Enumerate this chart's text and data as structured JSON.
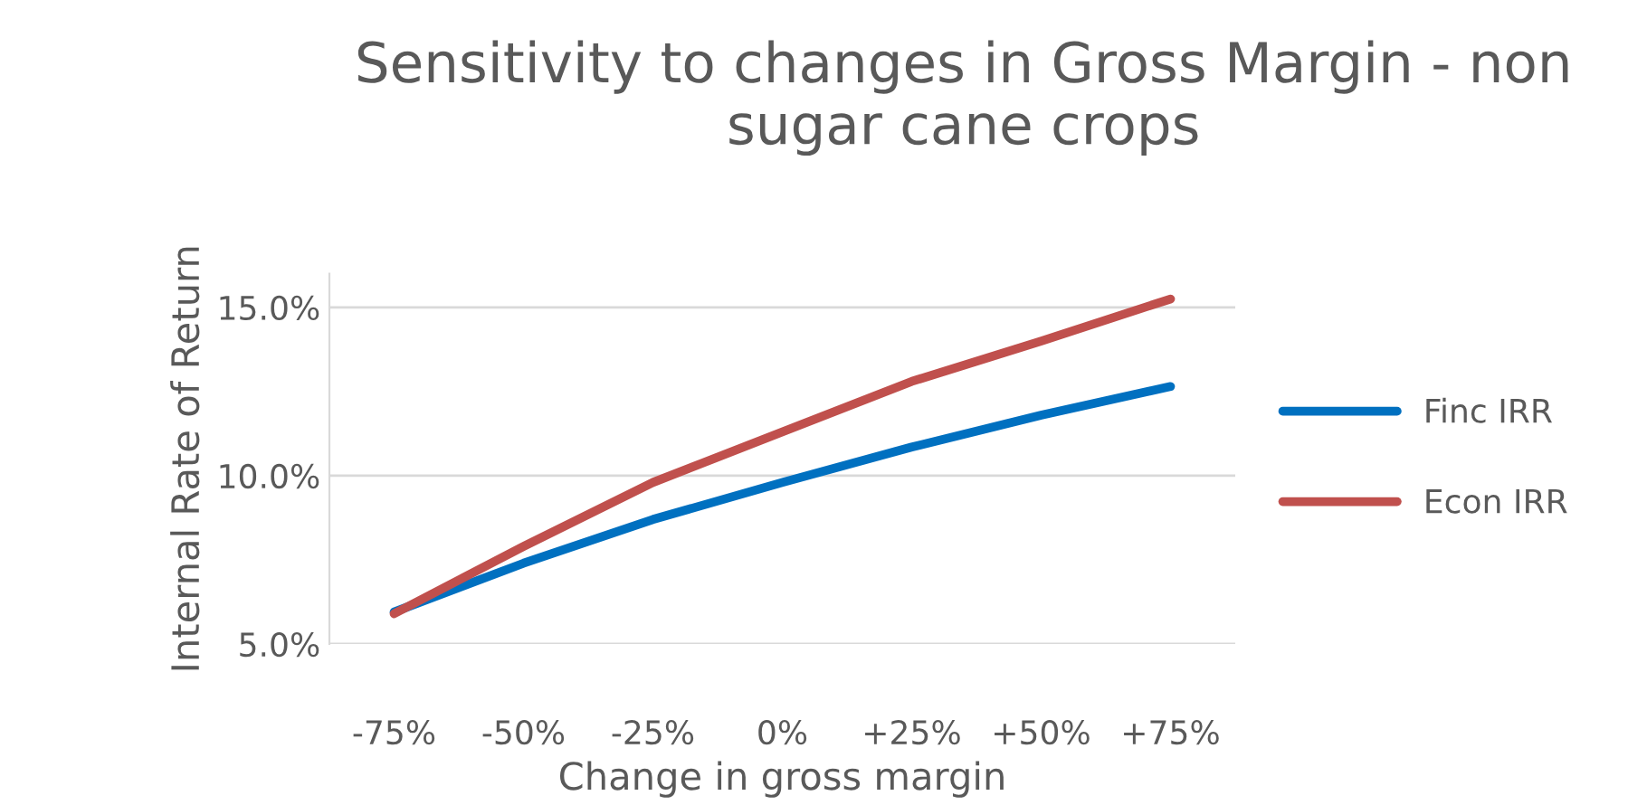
{
  "chart_data": {
    "type": "line",
    "title": "Sensitivity to changes in Gross Margin - non sugar cane crops",
    "xlabel": "Change in gross margin",
    "ylabel": "Internal Rate of Return",
    "categories": [
      "-75%",
      "-50%",
      "-25%",
      "0%",
      "+25%",
      "+50%",
      "+75%"
    ],
    "series": [
      {
        "name": "Finc IRR",
        "color": "#0070c0",
        "values": [
          5.95,
          7.4,
          8.7,
          9.8,
          10.85,
          11.8,
          12.65
        ]
      },
      {
        "name": "Econ IRR",
        "color": "#c0504d",
        "values": [
          5.9,
          7.9,
          9.8,
          11.3,
          12.8,
          14.0,
          15.25
        ]
      }
    ],
    "ylim": [
      5,
      16
    ],
    "yticks": [
      {
        "value": 5,
        "label": "5.0%"
      },
      {
        "value": 10,
        "label": "10.0%"
      },
      {
        "value": 15,
        "label": "15.0%"
      }
    ],
    "grid": "y",
    "legend": "right",
    "marker": "none",
    "line_style": "solid"
  }
}
